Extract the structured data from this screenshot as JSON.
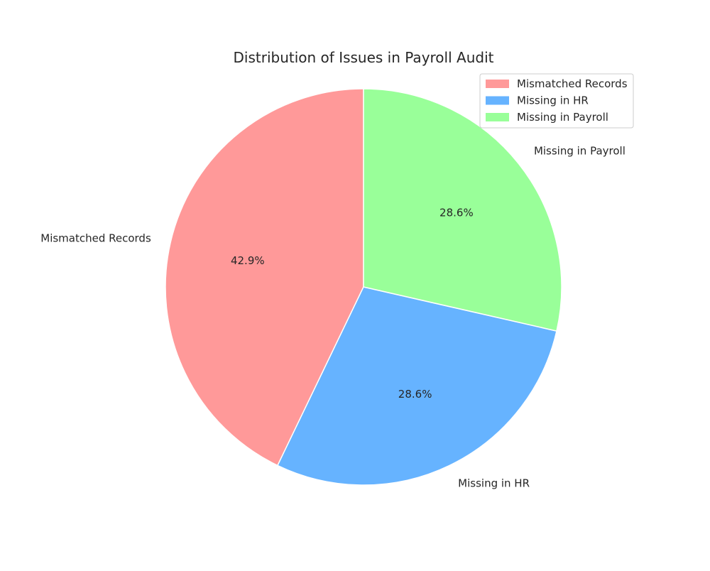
{
  "chart_data": {
    "type": "pie",
    "title": "Distribution of Issues in Payroll Audit",
    "categories": [
      "Mismatched Records",
      "Missing in HR",
      "Missing in Payroll"
    ],
    "values": [
      42.9,
      28.6,
      28.6
    ],
    "percent_labels": [
      "42.9%",
      "28.6%",
      "28.6%"
    ],
    "colors": [
      "#ff9999",
      "#66b3ff",
      "#99ff99"
    ],
    "start_angle_deg": 90,
    "direction": "counterclockwise",
    "legend": {
      "placement": "upper right",
      "entries": [
        "Mismatched Records",
        "Missing in HR",
        "Missing in Payroll"
      ]
    }
  }
}
